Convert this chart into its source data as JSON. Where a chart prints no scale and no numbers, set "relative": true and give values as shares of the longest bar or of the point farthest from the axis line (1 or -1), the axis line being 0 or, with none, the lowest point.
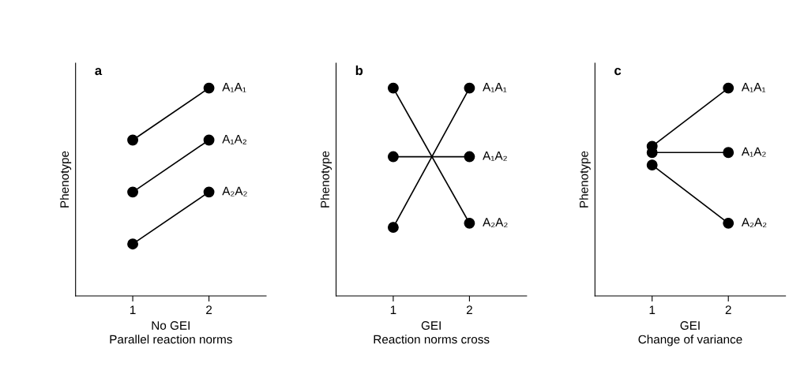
{
  "chart_data": [
    {
      "type": "line",
      "title": "a",
      "xlabel": "No GEI\nParallel reaction norms",
      "ylabel": "Phenotype",
      "categories": [
        "1",
        "2"
      ],
      "relative": true,
      "marker": "circle",
      "series": [
        {
          "name": "A₁A₁",
          "color": "#000000",
          "values": [
            0.75,
            1.0
          ]
        },
        {
          "name": "A₁A₂",
          "color": "#000000",
          "values": [
            0.5,
            0.75
          ]
        },
        {
          "name": "A₂A₂",
          "color": "#000000",
          "values": [
            0.25,
            0.5
          ]
        }
      ]
    },
    {
      "type": "line",
      "title": "b",
      "xlabel": "GEI\nReaction norms cross",
      "ylabel": "Phenotype",
      "categories": [
        "1",
        "2"
      ],
      "relative": true,
      "marker": "circle",
      "series": [
        {
          "name": "A₁A₁",
          "color": "#000000",
          "values": [
            0.33,
            1.0
          ]
        },
        {
          "name": "A₁A₂",
          "color": "#000000",
          "values": [
            0.67,
            0.67
          ]
        },
        {
          "name": "A₂A₂",
          "color": "#000000",
          "values": [
            1.0,
            0.35
          ]
        }
      ]
    },
    {
      "type": "line",
      "title": "c",
      "xlabel": "GEI\nChange of variance",
      "ylabel": "Phenotype",
      "categories": [
        "1",
        "2"
      ],
      "relative": true,
      "marker": "circle",
      "series": [
        {
          "name": "A₁A₁",
          "color": "#000000",
          "values": [
            0.72,
            1.0
          ]
        },
        {
          "name": "A₁A₂",
          "color": "#000000",
          "values": [
            0.69,
            0.69
          ]
        },
        {
          "name": "A₂A₂",
          "color": "#000000",
          "values": [
            0.63,
            0.35
          ]
        }
      ]
    }
  ]
}
